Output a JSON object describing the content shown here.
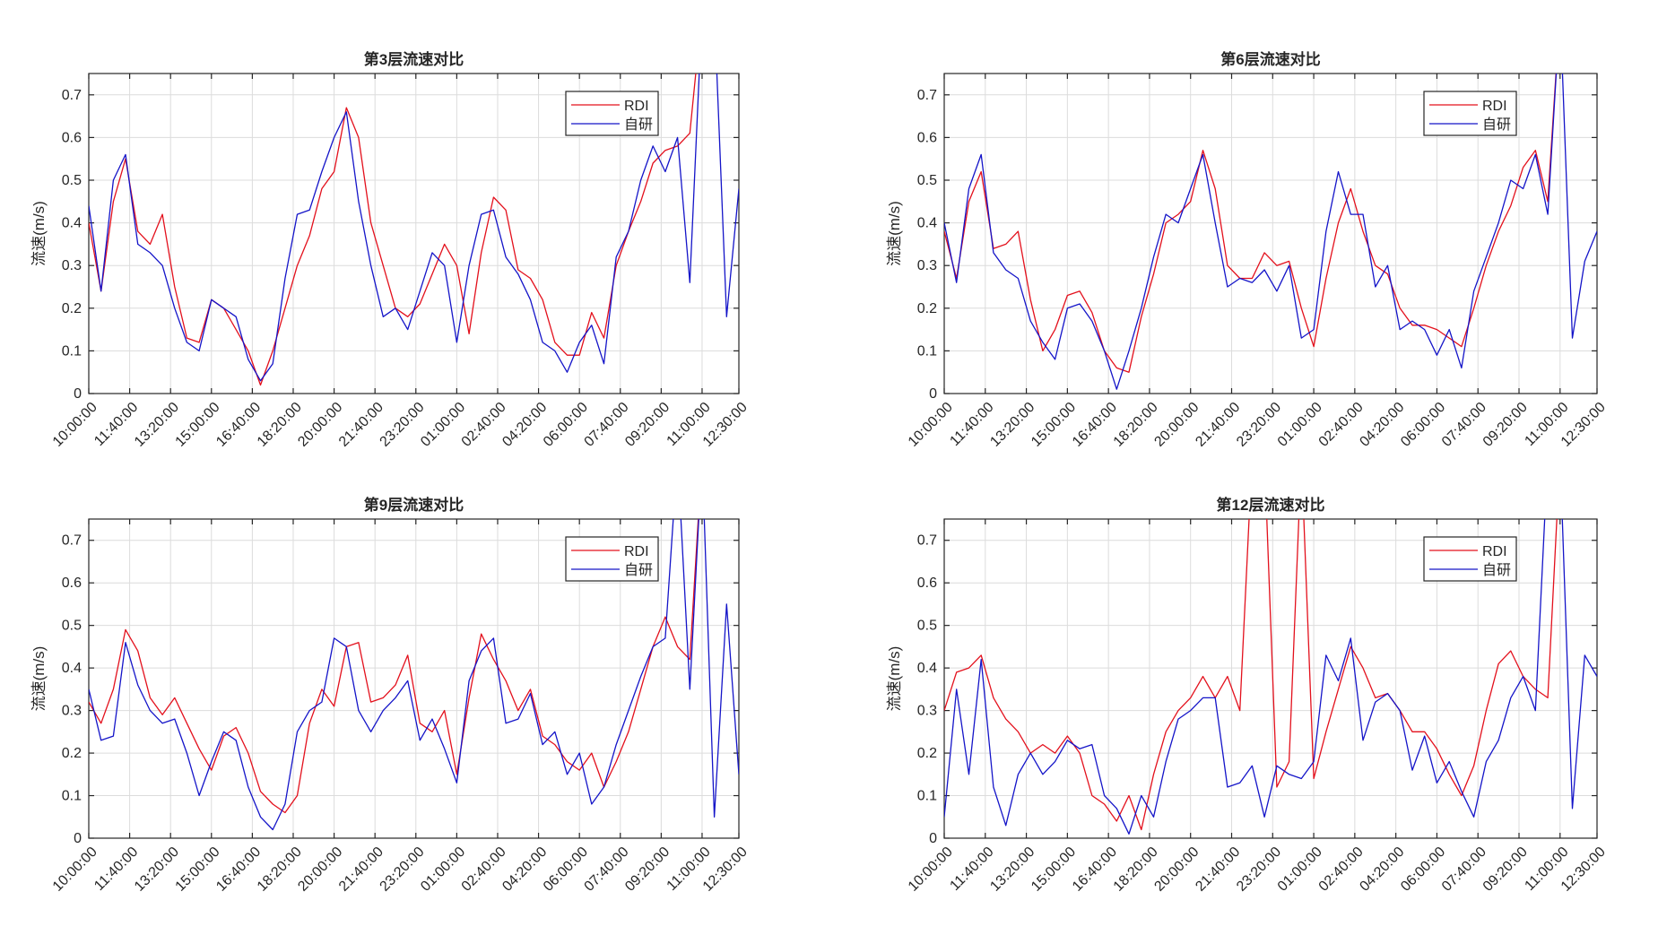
{
  "chart_data": [
    {
      "type": "line",
      "title": "第3层流速对比",
      "ylabel": "流速(m/s)",
      "xlabel": "",
      "ylim": [
        0,
        0.75
      ],
      "yticks": [
        "0",
        "0.1",
        "0.2",
        "0.3",
        "0.4",
        "0.5",
        "0.6",
        "0.7"
      ],
      "xlim_minutes": [
        0,
        1590
      ],
      "xticks": [
        "10:00:00",
        "11:40:00",
        "13:20:00",
        "15:00:00",
        "16:40:00",
        "18:20:00",
        "20:00:00",
        "21:40:00",
        "23:20:00",
        "01:00:00",
        "02:40:00",
        "04:20:00",
        "06:00:00",
        "07:40:00",
        "09:20:00",
        "11:00:00",
        "12:30:00"
      ],
      "sample_interval_minutes": 30,
      "grid": true,
      "legend_position": "top-right",
      "series": [
        {
          "name": "RDI",
          "color": "#e3101c",
          "values": [
            0.4,
            0.24,
            0.45,
            0.55,
            0.38,
            0.35,
            0.42,
            0.25,
            0.13,
            0.12,
            0.22,
            0.2,
            0.15,
            0.1,
            0.02,
            0.1,
            0.2,
            0.3,
            0.37,
            0.48,
            0.52,
            0.67,
            0.6,
            0.4,
            0.3,
            0.2,
            0.18,
            0.21,
            0.28,
            0.35,
            0.3,
            0.14,
            0.33,
            0.46,
            0.43,
            0.29,
            0.27,
            0.22,
            0.12,
            0.09,
            0.09,
            0.19,
            0.13,
            0.3,
            0.38,
            0.45,
            0.54,
            0.57,
            0.58,
            0.61,
            0.9,
            null,
            null,
            null
          ]
        },
        {
          "name": "自研",
          "color": "#1414c8",
          "values": [
            0.44,
            0.24,
            0.5,
            0.56,
            0.35,
            0.33,
            0.3,
            0.2,
            0.12,
            0.1,
            0.22,
            0.2,
            0.18,
            0.08,
            0.03,
            0.07,
            0.27,
            0.42,
            0.43,
            0.52,
            0.6,
            0.66,
            0.45,
            0.3,
            0.18,
            0.2,
            0.15,
            0.24,
            0.33,
            0.3,
            0.12,
            0.3,
            0.42,
            0.43,
            0.32,
            0.28,
            0.22,
            0.12,
            0.1,
            0.05,
            0.12,
            0.16,
            0.07,
            0.32,
            0.38,
            0.5,
            0.58,
            0.52,
            0.6,
            0.26,
            0.9,
            0.9,
            0.18,
            0.48
          ]
        }
      ]
    },
    {
      "type": "line",
      "title": "第6层流速对比",
      "ylabel": "流速(m/s)",
      "xlabel": "",
      "ylim": [
        0,
        0.75
      ],
      "yticks": [
        "0",
        "0.1",
        "0.2",
        "0.3",
        "0.4",
        "0.5",
        "0.6",
        "0.7"
      ],
      "xlim_minutes": [
        0,
        1590
      ],
      "xticks": [
        "10:00:00",
        "11:40:00",
        "13:20:00",
        "15:00:00",
        "16:40:00",
        "18:20:00",
        "20:00:00",
        "21:40:00",
        "23:20:00",
        "01:00:00",
        "02:40:00",
        "04:20:00",
        "06:00:00",
        "07:40:00",
        "09:20:00",
        "11:00:00",
        "12:30:00"
      ],
      "sample_interval_minutes": 30,
      "grid": true,
      "legend_position": "top-right",
      "series": [
        {
          "name": "RDI",
          "color": "#e3101c",
          "values": [
            0.38,
            0.27,
            0.45,
            0.52,
            0.34,
            0.35,
            0.38,
            0.22,
            0.1,
            0.15,
            0.23,
            0.24,
            0.19,
            0.1,
            0.06,
            0.05,
            0.18,
            0.28,
            0.4,
            0.42,
            0.45,
            0.57,
            0.48,
            0.3,
            0.27,
            0.27,
            0.33,
            0.3,
            0.31,
            0.2,
            0.11,
            0.27,
            0.4,
            0.48,
            0.38,
            0.3,
            0.28,
            0.2,
            0.16,
            0.16,
            0.15,
            0.13,
            0.11,
            0.2,
            0.3,
            0.38,
            0.44,
            0.53,
            0.57,
            0.45,
            0.9,
            null,
            null,
            null
          ]
        },
        {
          "name": "自研",
          "color": "#1414c8",
          "values": [
            0.4,
            0.26,
            0.48,
            0.56,
            0.33,
            0.29,
            0.27,
            0.17,
            0.12,
            0.08,
            0.2,
            0.21,
            0.17,
            0.1,
            0.01,
            0.1,
            0.2,
            0.32,
            0.42,
            0.4,
            0.48,
            0.56,
            0.4,
            0.25,
            0.27,
            0.26,
            0.29,
            0.24,
            0.3,
            0.13,
            0.15,
            0.38,
            0.52,
            0.42,
            0.42,
            0.25,
            0.3,
            0.15,
            0.17,
            0.15,
            0.09,
            0.15,
            0.06,
            0.24,
            0.32,
            0.4,
            0.5,
            0.48,
            0.56,
            0.42,
            0.9,
            0.13,
            0.31,
            0.38
          ]
        }
      ]
    },
    {
      "type": "line",
      "title": "第9层流速对比",
      "ylabel": "流速(m/s)",
      "xlabel": "",
      "ylim": [
        0,
        0.75
      ],
      "yticks": [
        "0",
        "0.1",
        "0.2",
        "0.3",
        "0.4",
        "0.5",
        "0.6",
        "0.7"
      ],
      "xlim_minutes": [
        0,
        1590
      ],
      "xticks": [
        "10:00:00",
        "11:40:00",
        "13:20:00",
        "15:00:00",
        "16:40:00",
        "18:20:00",
        "20:00:00",
        "21:40:00",
        "23:20:00",
        "01:00:00",
        "02:40:00",
        "04:20:00",
        "06:00:00",
        "07:40:00",
        "09:20:00",
        "11:00:00",
        "12:30:00"
      ],
      "sample_interval_minutes": 30,
      "grid": true,
      "legend_position": "top-right",
      "series": [
        {
          "name": "RDI",
          "color": "#e3101c",
          "values": [
            0.32,
            0.27,
            0.35,
            0.49,
            0.44,
            0.33,
            0.29,
            0.33,
            0.27,
            0.21,
            0.16,
            0.24,
            0.26,
            0.2,
            0.11,
            0.08,
            0.06,
            0.1,
            0.27,
            0.35,
            0.31,
            0.45,
            0.46,
            0.32,
            0.33,
            0.36,
            0.43,
            0.27,
            0.25,
            0.3,
            0.15,
            0.33,
            0.48,
            0.42,
            0.37,
            0.3,
            0.35,
            0.24,
            0.22,
            0.18,
            0.16,
            0.2,
            0.12,
            0.18,
            0.25,
            0.35,
            0.45,
            0.52,
            0.45,
            0.42,
            0.9,
            null,
            null,
            null
          ]
        },
        {
          "name": "自研",
          "color": "#1414c8",
          "values": [
            0.35,
            0.23,
            0.24,
            0.46,
            0.36,
            0.3,
            0.27,
            0.28,
            0.2,
            0.1,
            0.18,
            0.25,
            0.23,
            0.12,
            0.05,
            0.02,
            0.08,
            0.25,
            0.3,
            0.32,
            0.47,
            0.45,
            0.3,
            0.25,
            0.3,
            0.33,
            0.37,
            0.23,
            0.28,
            0.21,
            0.13,
            0.37,
            0.44,
            0.47,
            0.27,
            0.28,
            0.34,
            0.22,
            0.25,
            0.15,
            0.2,
            0.08,
            0.12,
            0.22,
            0.3,
            0.38,
            0.45,
            0.47,
            0.9,
            0.35,
            0.9,
            0.05,
            0.55,
            0.15
          ]
        }
      ]
    },
    {
      "type": "line",
      "title": "第12层流速对比",
      "ylabel": "流速(m/s)",
      "xlabel": "",
      "ylim": [
        0,
        0.75
      ],
      "yticks": [
        "0",
        "0.1",
        "0.2",
        "0.3",
        "0.4",
        "0.5",
        "0.6",
        "0.7"
      ],
      "xlim_minutes": [
        0,
        1590
      ],
      "xticks": [
        "10:00:00",
        "11:40:00",
        "13:20:00",
        "15:00:00",
        "16:40:00",
        "18:20:00",
        "20:00:00",
        "21:40:00",
        "23:20:00",
        "01:00:00",
        "02:40:00",
        "04:20:00",
        "06:00:00",
        "07:40:00",
        "09:20:00",
        "11:00:00",
        "12:30:00"
      ],
      "sample_interval_minutes": 30,
      "grid": true,
      "legend_position": "top-right",
      "series": [
        {
          "name": "RDI",
          "color": "#e3101c",
          "values": [
            0.3,
            0.39,
            0.4,
            0.43,
            0.33,
            0.28,
            0.25,
            0.2,
            0.22,
            0.2,
            0.24,
            0.2,
            0.1,
            0.08,
            0.04,
            0.1,
            0.02,
            0.15,
            0.25,
            0.3,
            0.33,
            0.38,
            0.33,
            0.38,
            0.3,
            0.9,
            0.9,
            0.12,
            0.18,
            0.9,
            0.14,
            0.25,
            0.35,
            0.45,
            0.4,
            0.33,
            0.34,
            0.3,
            0.25,
            0.25,
            0.21,
            0.15,
            0.1,
            0.17,
            0.3,
            0.41,
            0.44,
            0.38,
            0.35,
            0.33,
            0.9,
            null,
            null,
            null
          ]
        },
        {
          "name": "自研",
          "color": "#1414c8",
          "values": [
            0.05,
            0.35,
            0.15,
            0.42,
            0.12,
            0.03,
            0.15,
            0.2,
            0.15,
            0.18,
            0.23,
            0.21,
            0.22,
            0.1,
            0.07,
            0.01,
            0.1,
            0.05,
            0.18,
            0.28,
            0.3,
            0.33,
            0.33,
            0.12,
            0.13,
            0.17,
            0.05,
            0.17,
            0.15,
            0.14,
            0.18,
            0.43,
            0.37,
            0.47,
            0.23,
            0.32,
            0.34,
            0.3,
            0.16,
            0.24,
            0.13,
            0.18,
            0.11,
            0.05,
            0.18,
            0.23,
            0.33,
            0.38,
            0.3,
            0.9,
            0.9,
            0.07,
            0.43,
            0.38
          ]
        }
      ]
    }
  ]
}
